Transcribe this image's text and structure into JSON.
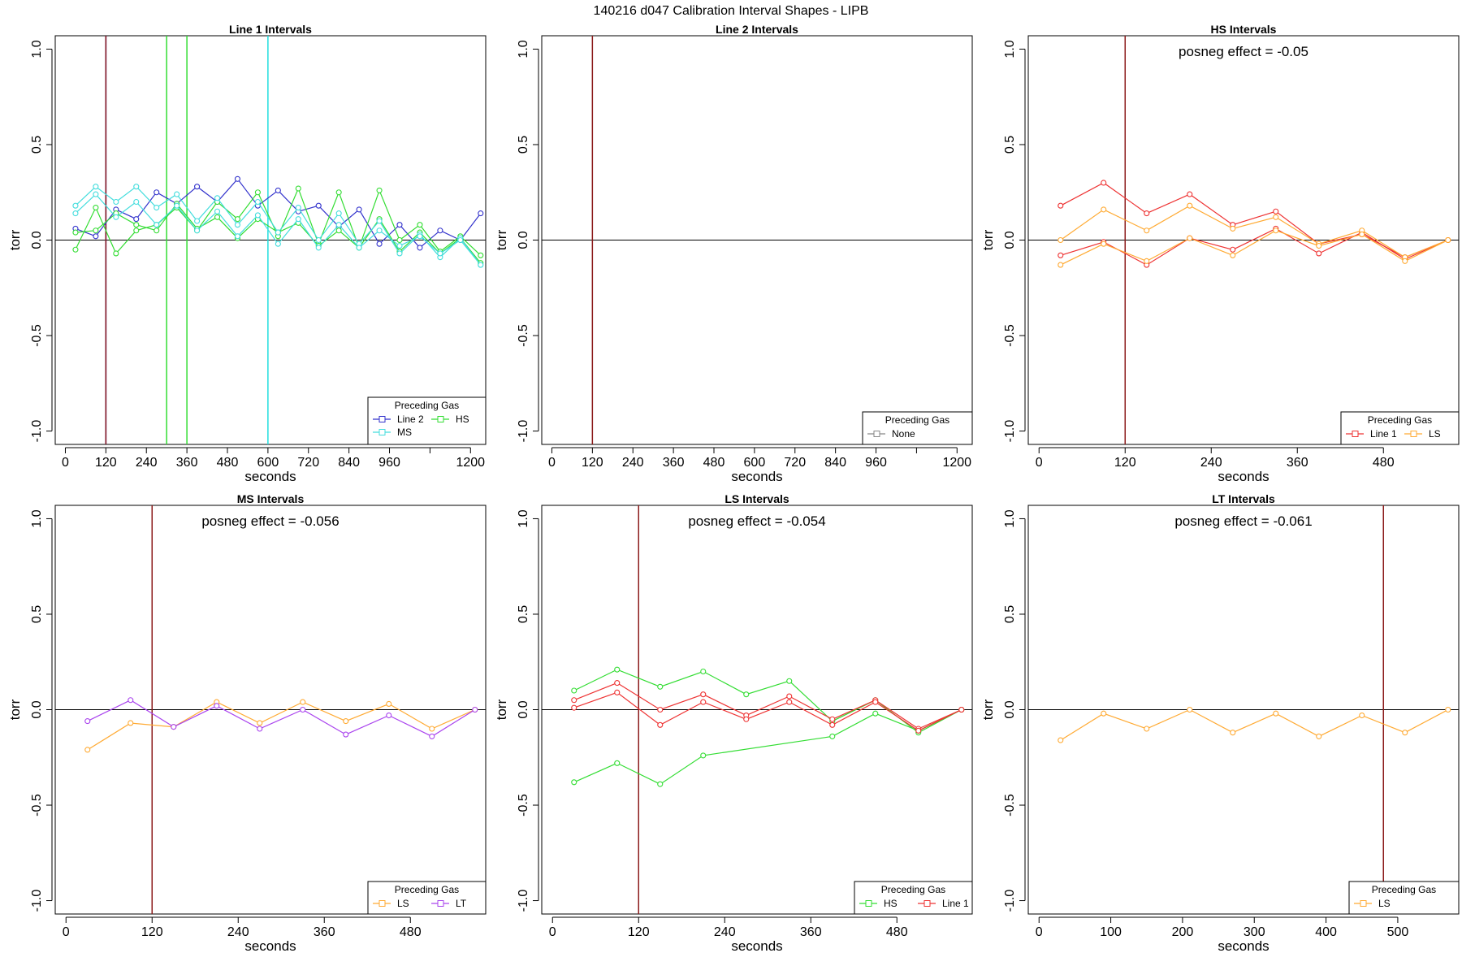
{
  "suptitle": "140216   d047   Calibration Interval Shapes - LIPB",
  "chart_data": [
    {
      "type": "line",
      "title": "Line 1 Intervals",
      "xlabel": "seconds",
      "ylabel": "torr",
      "xlim": [
        -30,
        1245
      ],
      "ylim": [
        -1.07,
        1.07
      ],
      "xticks": [
        0,
        120,
        240,
        360,
        480,
        600,
        720,
        840,
        960,
        1080,
        1200
      ],
      "xtick_labels": [
        "0",
        "120",
        "240",
        "360",
        "480",
        "600",
        "720",
        "840",
        "960",
        "",
        "1200"
      ],
      "yticks": [
        -1.0,
        -0.5,
        0.0,
        0.5,
        1.0
      ],
      "ytick_labels": [
        "-1.0",
        "-0.5",
        "0.0",
        "0.5",
        "1.0"
      ],
      "zero_line": true,
      "vlines": [
        {
          "x": 120,
          "color": "#0000cc"
        },
        {
          "x": 120,
          "color": "#8b1a1a"
        },
        {
          "x": 300,
          "color": "#33dd33"
        },
        {
          "x": 360,
          "color": "#33dd33"
        },
        {
          "x": 600,
          "color": "#22dddd"
        }
      ],
      "annotation": "",
      "legend": {
        "title": "Preceding Gas",
        "position": "bottom-right",
        "entries": [
          {
            "label": "Line 2",
            "color": "#3333cc"
          },
          {
            "label": "HS",
            "color": "#33dd33"
          },
          {
            "label": "MS",
            "color": "#44dddd"
          }
        ]
      },
      "series": [
        {
          "color": "#3333cc",
          "x": [
            30,
            90,
            150,
            210,
            270,
            330,
            390,
            450,
            510,
            570,
            630,
            690,
            750,
            810,
            870,
            930,
            990,
            1050,
            1110,
            1170,
            1230
          ],
          "y": [
            0.06,
            0.02,
            0.16,
            0.11,
            0.25,
            0.19,
            0.28,
            0.2,
            0.32,
            0.18,
            0.26,
            0.15,
            0.18,
            0.07,
            0.16,
            -0.02,
            0.08,
            -0.04,
            0.05,
            0.0,
            0.14
          ]
        },
        {
          "color": "#33dd33",
          "x": [
            30,
            90,
            150,
            210,
            270,
            330,
            390,
            450,
            510,
            570,
            630,
            690,
            750,
            810,
            870,
            930,
            990,
            1050,
            1110,
            1170,
            1230
          ],
          "y": [
            -0.05,
            0.17,
            -0.07,
            0.05,
            0.08,
            0.17,
            0.05,
            0.2,
            0.11,
            0.25,
            0.02,
            0.27,
            -0.02,
            0.25,
            -0.04,
            0.26,
            0.0,
            0.08,
            -0.06,
            0.02,
            -0.08
          ]
        },
        {
          "color": "#33dd33",
          "x": [
            30,
            90,
            150,
            210,
            270,
            330,
            390,
            450,
            510,
            570,
            630,
            690,
            750,
            810,
            870,
            930,
            990,
            1050,
            1110,
            1170,
            1230
          ],
          "y": [
            0.04,
            0.05,
            0.14,
            0.08,
            0.05,
            0.19,
            0.06,
            0.12,
            0.01,
            0.11,
            0.04,
            0.09,
            -0.03,
            0.05,
            -0.04,
            0.11,
            -0.06,
            0.04,
            -0.07,
            0.01,
            -0.12
          ]
        },
        {
          "color": "#44dddd",
          "x": [
            30,
            90,
            150,
            210,
            270,
            330,
            390,
            450,
            510,
            570,
            630,
            690,
            750,
            810,
            870,
            930,
            990,
            1050,
            1110,
            1170,
            1230
          ],
          "y": [
            0.18,
            0.28,
            0.2,
            0.28,
            0.17,
            0.24,
            0.1,
            0.22,
            0.08,
            0.2,
            0.04,
            0.17,
            0.0,
            0.14,
            -0.02,
            0.1,
            -0.07,
            0.03,
            -0.09,
            0.01,
            -0.13
          ]
        },
        {
          "color": "#44dddd",
          "x": [
            30,
            90,
            150,
            210,
            270,
            330,
            390,
            450,
            510,
            570,
            630,
            690,
            750,
            810,
            870,
            930,
            990,
            1050,
            1110,
            1170,
            1230
          ],
          "y": [
            0.14,
            0.24,
            0.12,
            0.2,
            0.08,
            0.18,
            0.05,
            0.15,
            0.02,
            0.13,
            -0.02,
            0.11,
            -0.04,
            0.08,
            -0.04,
            0.05,
            -0.03,
            0.02,
            -0.07,
            0.0,
            -0.13
          ]
        }
      ]
    },
    {
      "type": "line",
      "title": "Line 2 Intervals",
      "xlabel": "seconds",
      "ylabel": "torr",
      "xlim": [
        -30,
        1245
      ],
      "ylim": [
        -1.07,
        1.07
      ],
      "xticks": [
        0,
        120,
        240,
        360,
        480,
        600,
        720,
        840,
        960,
        1080,
        1200
      ],
      "xtick_labels": [
        "0",
        "120",
        "240",
        "360",
        "480",
        "600",
        "720",
        "840",
        "960",
        "",
        "1200"
      ],
      "yticks": [
        -1.0,
        -0.5,
        0.0,
        0.5,
        1.0
      ],
      "ytick_labels": [
        "-1.0",
        "-0.5",
        "0.0",
        "0.5",
        "1.0"
      ],
      "zero_line": true,
      "vlines": [
        {
          "x": 120,
          "color": "#8b1a1a"
        }
      ],
      "annotation": "",
      "legend": {
        "title": "Preceding Gas",
        "position": "bottom-right",
        "entries": [
          {
            "label": "None",
            "color": "#888888"
          }
        ]
      },
      "series": []
    },
    {
      "type": "line",
      "title": "HS Intervals",
      "xlabel": "seconds",
      "ylabel": "torr",
      "xlim": [
        -15,
        585
      ],
      "ylim": [
        -1.07,
        1.07
      ],
      "xticks": [
        0,
        120,
        240,
        360,
        480
      ],
      "xtick_labels": [
        "0",
        "120",
        "240",
        "360",
        "480"
      ],
      "yticks": [
        -1.0,
        -0.5,
        0.0,
        0.5,
        1.0
      ],
      "ytick_labels": [
        "-1.0",
        "-0.5",
        "0.0",
        "0.5",
        "1.0"
      ],
      "zero_line": true,
      "vlines": [
        {
          "x": 120,
          "color": "#8b1a1a"
        }
      ],
      "annotation": "posneg effect = -0.05",
      "legend": {
        "title": "Preceding Gas",
        "position": "bottom-right",
        "entries": [
          {
            "label": "Line 1",
            "color": "#ee3333"
          },
          {
            "label": "LS",
            "color": "#ffaa33"
          }
        ]
      },
      "series": [
        {
          "color": "#ee3333",
          "x": [
            30,
            90,
            150,
            210,
            270,
            330,
            390,
            450,
            510,
            570
          ],
          "y": [
            0.18,
            0.3,
            0.14,
            0.24,
            0.08,
            0.15,
            -0.02,
            0.03,
            -0.09,
            0.0
          ]
        },
        {
          "color": "#ee3333",
          "x": [
            30,
            90,
            150,
            210,
            270,
            330,
            390,
            450,
            510,
            570
          ],
          "y": [
            -0.08,
            -0.01,
            -0.13,
            0.01,
            -0.05,
            0.06,
            -0.07,
            0.04,
            -0.1,
            0.0
          ]
        },
        {
          "color": "#ffaa33",
          "x": [
            30,
            90,
            150,
            210,
            270,
            330,
            390,
            450,
            510,
            570
          ],
          "y": [
            0.0,
            0.16,
            0.05,
            0.18,
            0.06,
            0.12,
            -0.02,
            0.05,
            -0.09,
            0.0
          ]
        },
        {
          "color": "#ffaa33",
          "x": [
            30,
            90,
            150,
            210,
            270,
            330,
            390,
            450,
            510,
            570
          ],
          "y": [
            -0.13,
            -0.02,
            -0.11,
            0.01,
            -0.08,
            0.05,
            -0.03,
            0.03,
            -0.11,
            0.0
          ]
        }
      ]
    },
    {
      "type": "line",
      "title": "MS Intervals",
      "xlabel": "seconds",
      "ylabel": "torr",
      "xlim": [
        -15,
        585
      ],
      "ylim": [
        -1.07,
        1.07
      ],
      "xticks": [
        0,
        120,
        240,
        360,
        480
      ],
      "xtick_labels": [
        "0",
        "120",
        "240",
        "360",
        "480"
      ],
      "yticks": [
        -1.0,
        -0.5,
        0.0,
        0.5,
        1.0
      ],
      "ytick_labels": [
        "-1.0",
        "-0.5",
        "0.0",
        "0.5",
        "1.0"
      ],
      "zero_line": true,
      "vlines": [
        {
          "x": 120,
          "color": "#8b1a1a"
        }
      ],
      "annotation": "posneg effect = -0.056",
      "legend": {
        "title": "Preceding Gas",
        "position": "bottom-right",
        "entries": [
          {
            "label": "LS",
            "color": "#ffaa33"
          },
          {
            "label": "LT",
            "color": "#aa44ee"
          }
        ]
      },
      "series": [
        {
          "color": "#ffaa33",
          "x": [
            30,
            90,
            150,
            210,
            270,
            330,
            390,
            450,
            510,
            570
          ],
          "y": [
            -0.21,
            -0.07,
            -0.09,
            0.04,
            -0.07,
            0.04,
            -0.06,
            0.03,
            -0.1,
            0.0
          ]
        },
        {
          "color": "#aa44ee",
          "x": [
            30,
            90,
            150,
            210,
            270,
            330,
            390,
            450,
            510,
            570
          ],
          "y": [
            -0.06,
            0.05,
            -0.09,
            0.02,
            -0.1,
            0.0,
            -0.13,
            -0.03,
            -0.14,
            0.0
          ]
        }
      ]
    },
    {
      "type": "line",
      "title": "LS Intervals",
      "xlabel": "seconds",
      "ylabel": "torr",
      "xlim": [
        -15,
        585
      ],
      "ylim": [
        -1.07,
        1.07
      ],
      "xticks": [
        0,
        120,
        240,
        360,
        480
      ],
      "xtick_labels": [
        "0",
        "120",
        "240",
        "360",
        "480"
      ],
      "yticks": [
        -1.0,
        -0.5,
        0.0,
        0.5,
        1.0
      ],
      "ytick_labels": [
        "-1.0",
        "-0.5",
        "0.0",
        "0.5",
        "1.0"
      ],
      "zero_line": true,
      "vlines": [
        {
          "x": 120,
          "color": "#8b1a1a"
        }
      ],
      "annotation": "posneg effect = -0.054",
      "legend": {
        "title": "Preceding Gas",
        "position": "bottom-right",
        "entries": [
          {
            "label": "HS",
            "color": "#33dd33"
          },
          {
            "label": "Line 1",
            "color": "#ee3333"
          }
        ]
      },
      "series": [
        {
          "color": "#33dd33",
          "x": [
            30,
            90,
            150,
            210,
            270,
            330,
            390,
            450,
            510,
            570
          ],
          "y": [
            0.1,
            0.21,
            0.12,
            0.2,
            0.08,
            0.15,
            -0.06,
            0.05,
            -0.12,
            0.0
          ]
        },
        {
          "color": "#33dd33",
          "x": [
            30,
            90,
            150,
            210,
            390,
            450,
            510,
            570
          ],
          "y": [
            -0.38,
            -0.28,
            -0.39,
            -0.24,
            -0.14,
            -0.02,
            -0.11,
            0.0
          ]
        },
        {
          "color": "#ee3333",
          "x": [
            30,
            90,
            150,
            210,
            270,
            330,
            390,
            450,
            510,
            570
          ],
          "y": [
            0.05,
            0.14,
            0.0,
            0.08,
            -0.03,
            0.07,
            -0.05,
            0.05,
            -0.1,
            0.0
          ]
        },
        {
          "color": "#ee3333",
          "x": [
            30,
            90,
            150,
            210,
            270,
            330,
            390,
            450,
            510,
            570
          ],
          "y": [
            0.01,
            0.09,
            -0.08,
            0.04,
            -0.05,
            0.04,
            -0.08,
            0.04,
            -0.11,
            0.0
          ]
        }
      ]
    },
    {
      "type": "line",
      "title": "LT Intervals",
      "xlabel": "seconds",
      "ylabel": "torr",
      "xlim": [
        -15,
        585
      ],
      "ylim": [
        -1.07,
        1.07
      ],
      "xticks": [
        0,
        100,
        200,
        300,
        400,
        500
      ],
      "xtick_labels": [
        "0",
        "100",
        "200",
        "300",
        "400",
        "500"
      ],
      "yticks": [
        -1.0,
        -0.5,
        0.0,
        0.5,
        1.0
      ],
      "ytick_labels": [
        "-1.0",
        "-0.5",
        "0.0",
        "0.5",
        "1.0"
      ],
      "zero_line": true,
      "vlines": [
        {
          "x": 480,
          "color": "#8b1a1a"
        }
      ],
      "annotation": "posneg effect = -0.061",
      "legend": {
        "title": "Preceding Gas",
        "position": "bottom-right",
        "entries": [
          {
            "label": "LS",
            "color": "#ffaa33"
          }
        ]
      },
      "series": [
        {
          "color": "#ffaa33",
          "x": [
            30,
            90,
            150,
            210,
            270,
            330,
            390,
            450,
            510,
            570
          ],
          "y": [
            -0.16,
            -0.02,
            -0.1,
            0.0,
            -0.12,
            -0.02,
            -0.14,
            -0.03,
            -0.12,
            0.0
          ]
        }
      ]
    }
  ]
}
